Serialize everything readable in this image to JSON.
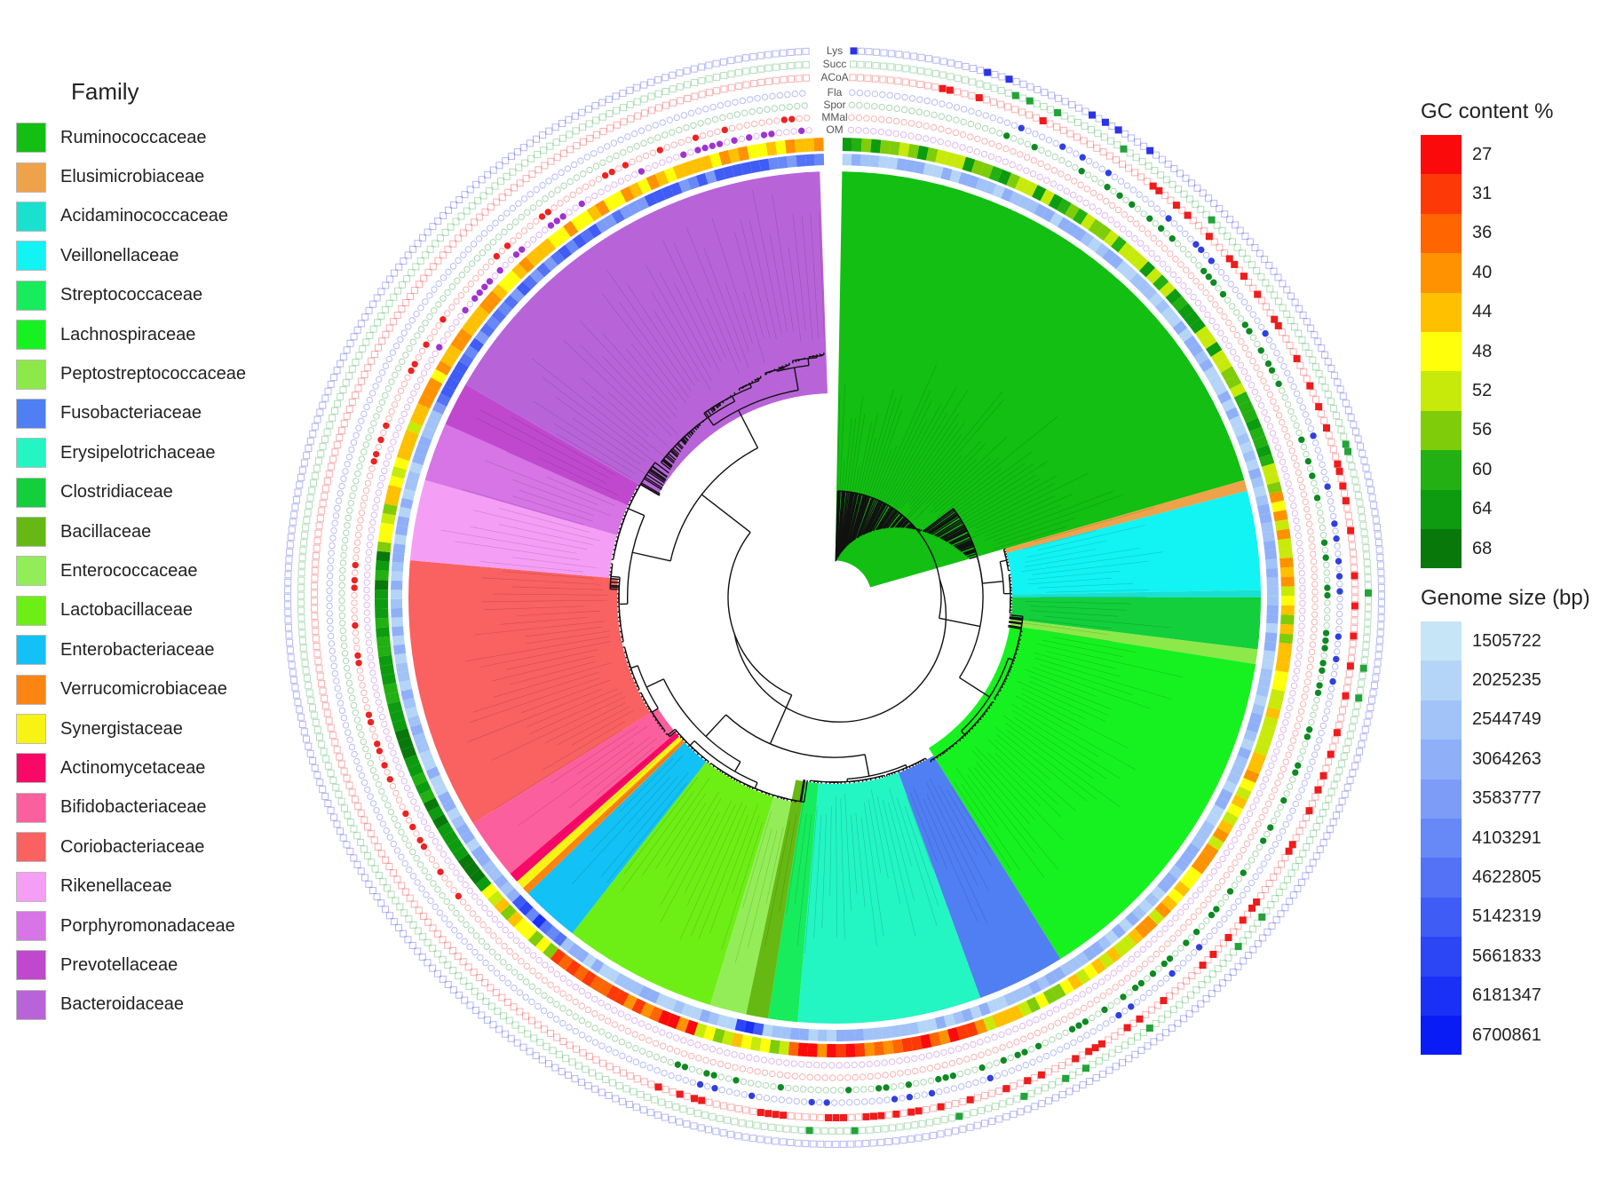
{
  "family_legend": {
    "title": "Family",
    "items": [
      {
        "label": "Ruminococcaceae",
        "color": "#12bf12"
      },
      {
        "label": "Elusimicrobiaceae",
        "color": "#eea24a"
      },
      {
        "label": "Acidaminococcaceae",
        "color": "#19e0cf"
      },
      {
        "label": "Veillonellaceae",
        "color": "#12f3f3"
      },
      {
        "label": "Streptococcaceae",
        "color": "#16ec5c"
      },
      {
        "label": "Lachnospiraceae",
        "color": "#16f21f"
      },
      {
        "label": "Peptostreptococcaceae",
        "color": "#8de84a"
      },
      {
        "label": "Fusobacteriaceae",
        "color": "#4f7ff3"
      },
      {
        "label": "Erysipelotrichaceae",
        "color": "#23f5c3"
      },
      {
        "label": "Clostridiaceae",
        "color": "#12cf3b"
      },
      {
        "label": "Bacillaceae",
        "color": "#66b912"
      },
      {
        "label": "Enterococcaceae",
        "color": "#93ed58"
      },
      {
        "label": "Lactobacillaceae",
        "color": "#6def16"
      },
      {
        "label": "Enterobacteriaceae",
        "color": "#12c1f5"
      },
      {
        "label": "Verrucomicrobiaceae",
        "color": "#fb8412"
      },
      {
        "label": "Synergistaceae",
        "color": "#f7f315"
      },
      {
        "label": "Actinomycetaceae",
        "color": "#f80867"
      },
      {
        "label": "Bifidobacteriaceae",
        "color": "#fb5f9d"
      },
      {
        "label": "Coriobacteriaceae",
        "color": "#fa6161"
      },
      {
        "label": "Rikenellaceae",
        "color": "#f59ef5"
      },
      {
        "label": "Porphyromonadaceae",
        "color": "#d774e6"
      },
      {
        "label": "Prevotellaceae",
        "color": "#c048cf"
      },
      {
        "label": "Bacteroidaceae",
        "color": "#b864d8"
      }
    ]
  },
  "gc_legend": {
    "title": "GC content %",
    "items": [
      {
        "label": "27",
        "color": "#fa0a0a"
      },
      {
        "label": "31",
        "color": "#fd3a07"
      },
      {
        "label": "36",
        "color": "#ff6500"
      },
      {
        "label": "40",
        "color": "#ff9200"
      },
      {
        "label": "44",
        "color": "#ffc000"
      },
      {
        "label": "48",
        "color": "#ffff0a"
      },
      {
        "label": "52",
        "color": "#c7ea0a"
      },
      {
        "label": "56",
        "color": "#7fcc0a"
      },
      {
        "label": "60",
        "color": "#22b012"
      },
      {
        "label": "64",
        "color": "#0d9b10"
      },
      {
        "label": "68",
        "color": "#08780a"
      }
    ]
  },
  "genome_size_legend": {
    "title": "Genome size (bp)",
    "items": [
      {
        "label": "1505722",
        "color": "#c6e5f7"
      },
      {
        "label": "2025235",
        "color": "#b5d5f8"
      },
      {
        "label": "2544749",
        "color": "#a2c3f8"
      },
      {
        "label": "3064263",
        "color": "#8fb0f8"
      },
      {
        "label": "3583777",
        "color": "#7c9cf8"
      },
      {
        "label": "4103291",
        "color": "#6788f7"
      },
      {
        "label": "4622805",
        "color": "#5372f6"
      },
      {
        "label": "5142319",
        "color": "#3f5cf6"
      },
      {
        "label": "5661833",
        "color": "#2c46f6"
      },
      {
        "label": "6181347",
        "color": "#1a30f6"
      },
      {
        "label": "6700861",
        "color": "#0a1cf5"
      }
    ]
  },
  "ring_labels": [
    "Lys",
    "Succ",
    "ACoA",
    "Fla",
    "Spor",
    "MMal",
    "OM"
  ],
  "ring_colors": {
    "Lys": "#2a33e6",
    "Succ": "#23a33a",
    "ACoA": "#ee1c1c",
    "Fla": "#3040e0",
    "Spor": "#0e8a22",
    "MMal": "#ee2222",
    "OM": "#a033d0"
  },
  "tree_sectors": [
    {
      "family": "Ruminococcaceae",
      "start": 1,
      "end": 74
    },
    {
      "family": "Elusimicrobiaceae",
      "start": 74,
      "end": 75.5
    },
    {
      "family": "Veillonellaceae",
      "start": 75.5,
      "end": 89
    },
    {
      "family": "Acidaminococcaceae",
      "start": 89,
      "end": 90
    },
    {
      "family": "Clostridiaceae",
      "start": 90,
      "end": 97
    },
    {
      "family": "Peptostreptococcaceae",
      "start": 97,
      "end": 99
    },
    {
      "family": "Lachnospiraceae",
      "start": 99,
      "end": 148
    },
    {
      "family": "Fusobacteriaceae",
      "start": 148,
      "end": 160
    },
    {
      "family": "Erysipelotrichaceae",
      "start": 160,
      "end": 185
    },
    {
      "family": "Streptococcaceae",
      "start": 185,
      "end": 189
    },
    {
      "family": "Bacillaceae",
      "start": 189,
      "end": 192
    },
    {
      "family": "Enterococcaceae",
      "start": 192,
      "end": 197
    },
    {
      "family": "Lactobacillaceae",
      "start": 197,
      "end": 218
    },
    {
      "family": "Enterobacteriaceae",
      "start": 218,
      "end": 226
    },
    {
      "family": "Verrucomicrobiaceae",
      "start": 226,
      "end": 227
    },
    {
      "family": "Synergistaceae",
      "start": 227,
      "end": 228.2
    },
    {
      "family": "Actinomycetaceae",
      "start": 228.2,
      "end": 229.6
    },
    {
      "family": "Bifidobacteriaceae",
      "start": 229.6,
      "end": 238
    },
    {
      "family": "Coriobacteriaceae",
      "start": 238,
      "end": 275
    },
    {
      "family": "Rikenellaceae",
      "start": 275,
      "end": 286
    },
    {
      "family": "Porphyromonadaceae",
      "start": 286,
      "end": 294
    },
    {
      "family": "Prevotellaceae",
      "start": 294,
      "end": 300
    },
    {
      "family": "Bacteroidaceae",
      "start": 300,
      "end": 358
    }
  ]
}
